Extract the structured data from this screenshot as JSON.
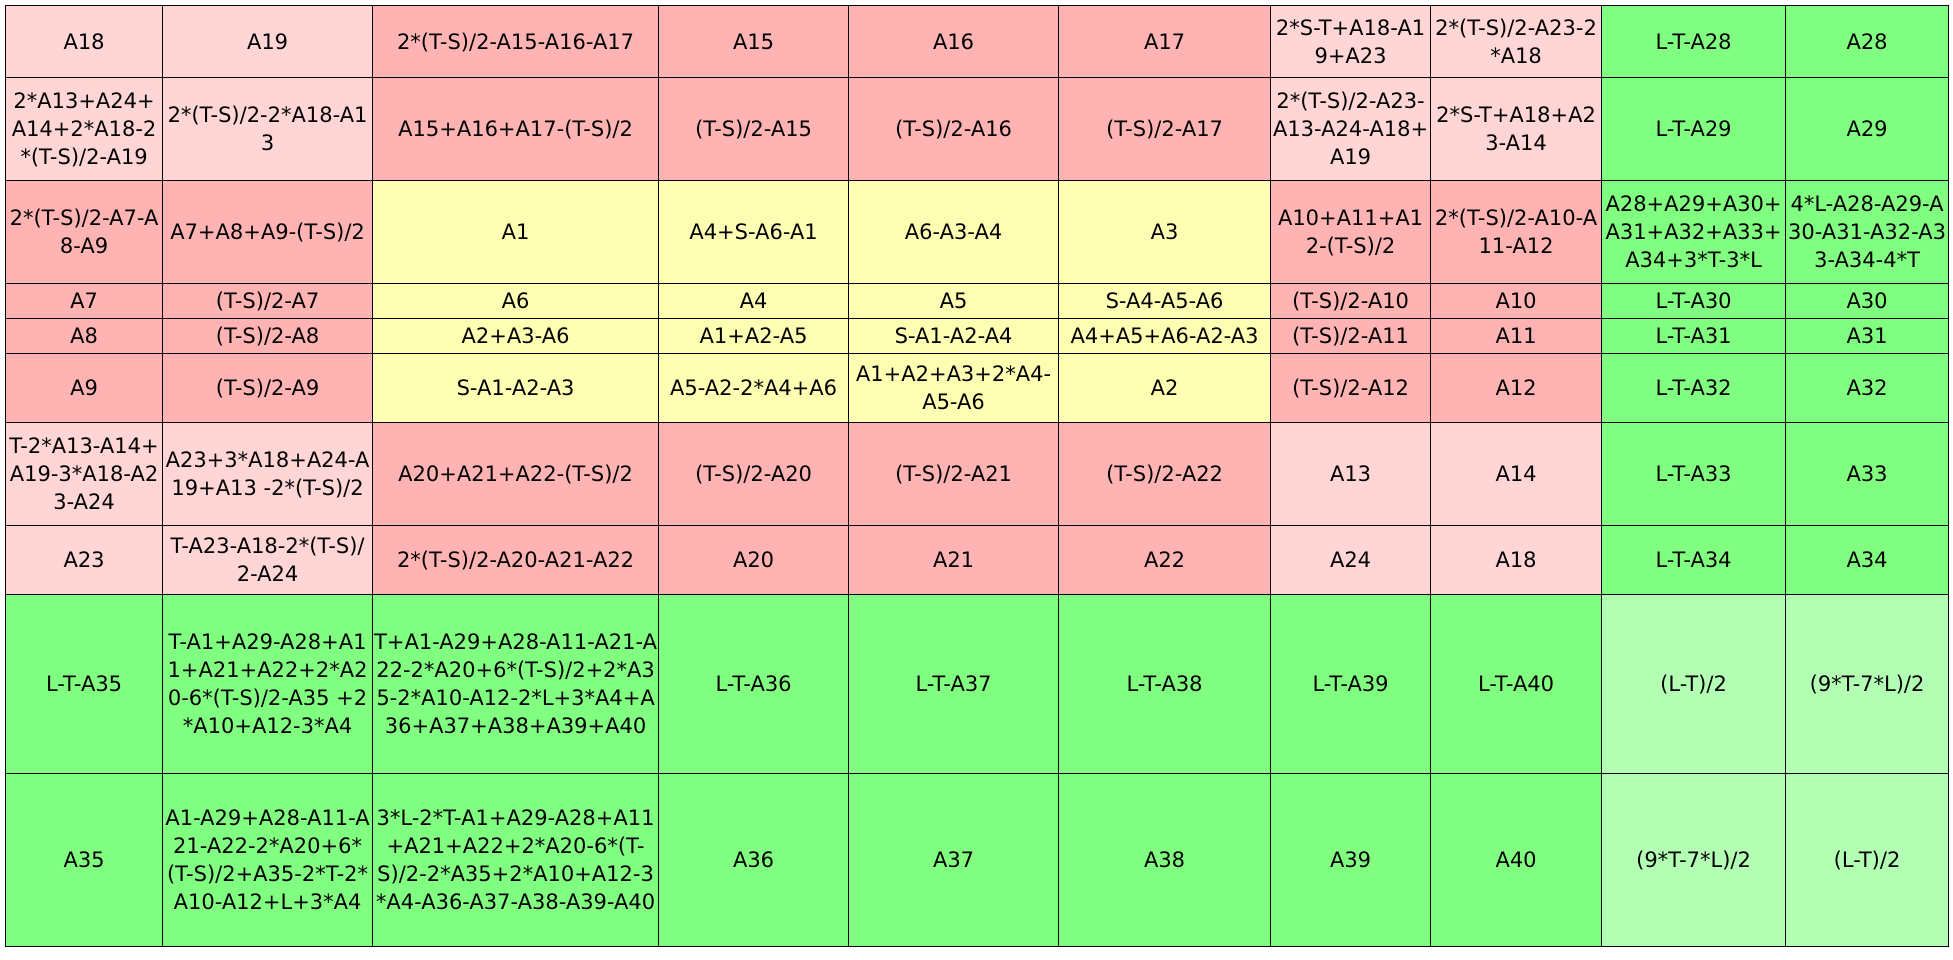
{
  "table": {
    "rows": [
      [
        {
          "text": "A18",
          "color": "pl"
        },
        {
          "text": "A19",
          "color": "pl"
        },
        {
          "text": "2*(T-S)/2-A15-A16-A17",
          "color": "r"
        },
        {
          "text": "A15",
          "color": "r"
        },
        {
          "text": "A16",
          "color": "r"
        },
        {
          "text": "A17",
          "color": "r"
        },
        {
          "text": "2*S-T+A18-A19+A23",
          "color": "pl"
        },
        {
          "text": "2*(T-S)/2-A23-2*A18",
          "color": "pl"
        },
        {
          "text": "L-T-A28",
          "color": "g"
        },
        {
          "text": "A28",
          "color": "g"
        }
      ],
      [
        {
          "text": "2*A13+A24+A14+2*A18-2*(T-S)/2-A19",
          "color": "pl"
        },
        {
          "text": "2*(T-S)/2-2*A18-A13",
          "color": "pl"
        },
        {
          "text": "A15+A16+A17-(T-S)/2",
          "color": "r"
        },
        {
          "text": "(T-S)/2-A15",
          "color": "r"
        },
        {
          "text": "(T-S)/2-A16",
          "color": "r"
        },
        {
          "text": "(T-S)/2-A17",
          "color": "r"
        },
        {
          "text": "2*(T-S)/2-A23-A13-A24-A18+A19",
          "color": "pl"
        },
        {
          "text": "2*S-T+A18+A23-A14",
          "color": "pl"
        },
        {
          "text": "L-T-A29",
          "color": "g"
        },
        {
          "text": "A29",
          "color": "g"
        }
      ],
      [
        {
          "text": "2*(T-S)/2-A7-A8-A9",
          "color": "r"
        },
        {
          "text": "A7+A8+A9-(T-S)/2",
          "color": "r"
        },
        {
          "text": "A1",
          "color": "y"
        },
        {
          "text": "A4+S-A6-A1",
          "color": "y"
        },
        {
          "text": "A6-A3-A4",
          "color": "y"
        },
        {
          "text": "A3",
          "color": "y"
        },
        {
          "text": "A10+A11+A12-(T-S)/2",
          "color": "r"
        },
        {
          "text": "2*(T-S)/2-A10-A11-A12",
          "color": "r"
        },
        {
          "text": "A28+A29+A30+A31+A32+A33+A34+3*T-3*L",
          "color": "g"
        },
        {
          "text": "4*L-A28-A29-A30-A31-A32-A33-A34-4*T",
          "color": "g"
        }
      ],
      [
        {
          "text": "A7",
          "color": "r"
        },
        {
          "text": "(T-S)/2-A7",
          "color": "r"
        },
        {
          "text": "A6",
          "color": "y"
        },
        {
          "text": "A4",
          "color": "y"
        },
        {
          "text": "A5",
          "color": "y"
        },
        {
          "text": "S-A4-A5-A6",
          "color": "y"
        },
        {
          "text": "(T-S)/2-A10",
          "color": "r"
        },
        {
          "text": "A10",
          "color": "r"
        },
        {
          "text": "L-T-A30",
          "color": "g"
        },
        {
          "text": "A30",
          "color": "g"
        }
      ],
      [
        {
          "text": "A8",
          "color": "r"
        },
        {
          "text": "(T-S)/2-A8",
          "color": "r"
        },
        {
          "text": "A2+A3-A6",
          "color": "y"
        },
        {
          "text": "A1+A2-A5",
          "color": "y"
        },
        {
          "text": "S-A1-A2-A4",
          "color": "y"
        },
        {
          "text": "A4+A5+A6-A2-A3",
          "color": "y"
        },
        {
          "text": "(T-S)/2-A11",
          "color": "r"
        },
        {
          "text": "A11",
          "color": "r"
        },
        {
          "text": "L-T-A31",
          "color": "g"
        },
        {
          "text": "A31",
          "color": "g"
        }
      ],
      [
        {
          "text": "A9",
          "color": "r"
        },
        {
          "text": "(T-S)/2-A9",
          "color": "r"
        },
        {
          "text": "S-A1-A2-A3",
          "color": "y"
        },
        {
          "text": "A5-A2-2*A4+A6",
          "color": "y"
        },
        {
          "text": "A1+A2+A3+2*A4-A5-A6",
          "color": "y"
        },
        {
          "text": "A2",
          "color": "y"
        },
        {
          "text": "(T-S)/2-A12",
          "color": "r"
        },
        {
          "text": "A12",
          "color": "r"
        },
        {
          "text": "L-T-A32",
          "color": "g"
        },
        {
          "text": "A32",
          "color": "g"
        }
      ],
      [
        {
          "text": "T-2*A13-A14+A19-3*A18-A23-A24",
          "color": "pl"
        },
        {
          "text": "A23+3*A18+A24-A19+A13 -2*(T-S)/2",
          "color": "pl"
        },
        {
          "text": "A20+A21+A22-(T-S)/2",
          "color": "r"
        },
        {
          "text": "(T-S)/2-A20",
          "color": "r"
        },
        {
          "text": "(T-S)/2-A21",
          "color": "r"
        },
        {
          "text": "(T-S)/2-A22",
          "color": "r"
        },
        {
          "text": "A13",
          "color": "pl"
        },
        {
          "text": "A14",
          "color": "pl"
        },
        {
          "text": "L-T-A33",
          "color": "g"
        },
        {
          "text": "A33",
          "color": "g"
        }
      ],
      [
        {
          "text": "A23",
          "color": "pl"
        },
        {
          "text": "T-A23-A18-2*(T-S)/2-A24",
          "color": "pl"
        },
        {
          "text": "2*(T-S)/2-A20-A21-A22",
          "color": "r"
        },
        {
          "text": "A20",
          "color": "r"
        },
        {
          "text": "A21",
          "color": "r"
        },
        {
          "text": "A22",
          "color": "r"
        },
        {
          "text": "A24",
          "color": "pl"
        },
        {
          "text": "A18",
          "color": "pl"
        },
        {
          "text": "L-T-A34",
          "color": "g"
        },
        {
          "text": "A34",
          "color": "g"
        }
      ],
      [
        {
          "text": "L-T-A35",
          "color": "g"
        },
        {
          "text": "T-A1+A29-A28+A11+A21+A22+2*A20-6*(T-S)/2-A35 +2*A10+A12-3*A4",
          "color": "g"
        },
        {
          "text": "T+A1-A29+A28-A11-A21-A22-2*A20+6*(T-S)/2+2*A35-2*A10-A12-2*L+3*A4+A36+A37+A38+A39+A40",
          "color": "g"
        },
        {
          "text": "L-T-A36",
          "color": "g"
        },
        {
          "text": "L-T-A37",
          "color": "g"
        },
        {
          "text": "L-T-A38",
          "color": "g"
        },
        {
          "text": "L-T-A39",
          "color": "g"
        },
        {
          "text": "L-T-A40",
          "color": "g"
        },
        {
          "text": "(L-T)/2",
          "color": "lg"
        },
        {
          "text": "(9*T-7*L)/2",
          "color": "lg"
        }
      ],
      [
        {
          "text": "A35",
          "color": "g"
        },
        {
          "text": "A1-A29+A28-A11-A21-A22-2*A20+6*(T-S)/2+A35-2*T-2*A10-A12+L+3*A4",
          "color": "g"
        },
        {
          "text": "3*L-2*T-A1+A29-A28+A11+A21+A22+2*A20-6*(T-S)/2-2*A35+2*A10+A12-3*A4-A36-A37-A38-A39-A40",
          "color": "g"
        },
        {
          "text": "A36",
          "color": "g"
        },
        {
          "text": "A37",
          "color": "g"
        },
        {
          "text": "A38",
          "color": "g"
        },
        {
          "text": "A39",
          "color": "g"
        },
        {
          "text": "A40",
          "color": "g"
        },
        {
          "text": "(9*T-7*L)/2",
          "color": "lg"
        },
        {
          "text": "(L-T)/2",
          "color": "lg"
        }
      ]
    ]
  }
}
